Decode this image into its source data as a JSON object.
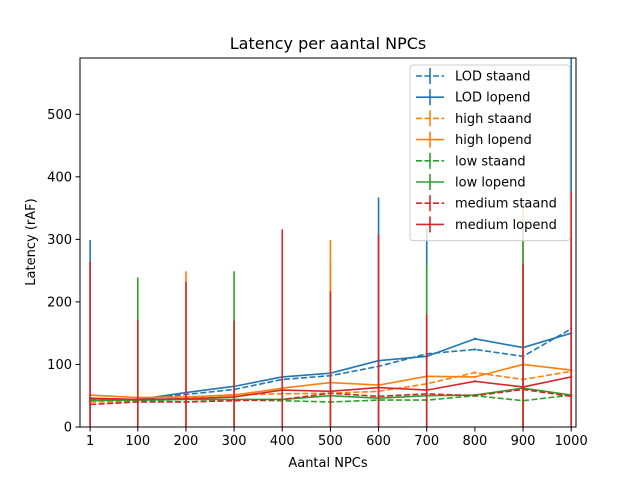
{
  "chart_data": {
    "type": "line",
    "title": "Latency per aantal NPCs",
    "xlabel": "Aantal NPCs",
    "ylabel": "Latency (rAF)",
    "x": [
      1,
      100,
      200,
      300,
      400,
      500,
      600,
      700,
      800,
      900,
      1000
    ],
    "xticks": [
      "1",
      "100",
      "200",
      "300",
      "400",
      "500",
      "600",
      "700",
      "800",
      "900",
      "1000"
    ],
    "yticks": [
      "0",
      "100",
      "200",
      "300",
      "400",
      "500"
    ],
    "xlim": [
      -20,
      1010
    ],
    "ylim": [
      0,
      590
    ],
    "grid": false,
    "legend_position": "top-right",
    "series": [
      {
        "name": "LOD staand",
        "color": "#1f77b4",
        "dash": true,
        "values": [
          45,
          44,
          52,
          60,
          76,
          82,
          97,
          117,
          124,
          113,
          157
        ],
        "err_upper": [
          299,
          0,
          0,
          0,
          0,
          0,
          0,
          0,
          0,
          0,
          0
        ]
      },
      {
        "name": "LOD lopend",
        "color": "#1f77b4",
        "dash": false,
        "values": [
          42,
          44,
          55,
          65,
          80,
          86,
          106,
          113,
          141,
          127,
          150
        ],
        "err_upper": [
          0,
          0,
          0,
          0,
          0,
          0,
          367,
          320,
          0,
          0,
          590
        ]
      },
      {
        "name": "high staand",
        "color": "#ff7f0e",
        "dash": true,
        "values": [
          40,
          41,
          47,
          52,
          53,
          54,
          57,
          69,
          87,
          76,
          89
        ],
        "err_upper": [
          0,
          0,
          249,
          0,
          0,
          299,
          0,
          0,
          0,
          360,
          0
        ]
      },
      {
        "name": "high lopend",
        "color": "#ff7f0e",
        "dash": false,
        "values": [
          51,
          47,
          48,
          51,
          62,
          71,
          67,
          81,
          80,
          100,
          91
        ],
        "err_upper": [
          0,
          0,
          0,
          0,
          0,
          265,
          0,
          0,
          0,
          0,
          0
        ]
      },
      {
        "name": "low staand",
        "color": "#2ca02c",
        "dash": true,
        "values": [
          43,
          42,
          40,
          43,
          42,
          40,
          43,
          43,
          50,
          42,
          51
        ],
        "err_upper": [
          0,
          0,
          0,
          249,
          0,
          0,
          0,
          0,
          0,
          0,
          0
        ]
      },
      {
        "name": "low lopend",
        "color": "#2ca02c",
        "dash": false,
        "values": [
          43,
          43,
          44,
          44,
          44,
          50,
          46,
          50,
          51,
          62,
          51
        ],
        "err_upper": [
          0,
          239,
          0,
          0,
          0,
          0,
          0,
          259,
          0,
          332,
          0
        ]
      },
      {
        "name": "medium staand",
        "color": "#d62728",
        "dash": true,
        "values": [
          36,
          40,
          40,
          42,
          44,
          54,
          49,
          53,
          50,
          60,
          49
        ],
        "err_upper": [
          0,
          0,
          0,
          0,
          0,
          0,
          0,
          0,
          0,
          0,
          0
        ]
      },
      {
        "name": "medium lopend",
        "color": "#d62728",
        "dash": false,
        "values": [
          46,
          44,
          45,
          48,
          59,
          57,
          63,
          59,
          73,
          64,
          80
        ],
        "err_upper": [
          264,
          171,
          232,
          170,
          316,
          217,
          308,
          180,
          0,
          260,
          375
        ]
      }
    ]
  }
}
